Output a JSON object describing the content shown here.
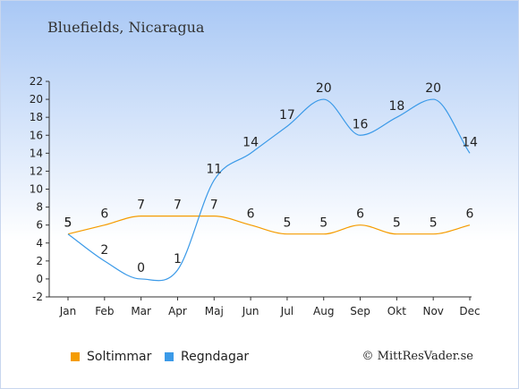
{
  "title": "Bluefields, Nicaragua",
  "credit": "© MittResVader.se",
  "chart_data": {
    "type": "line",
    "categories": [
      "Jan",
      "Feb",
      "Mar",
      "Apr",
      "Maj",
      "Jun",
      "Jul",
      "Aug",
      "Sep",
      "Okt",
      "Nov",
      "Dec"
    ],
    "ylim": [
      -2,
      22
    ],
    "yticks": [
      -2,
      0,
      2,
      4,
      6,
      8,
      10,
      12,
      14,
      16,
      18,
      20,
      22
    ],
    "grid": false,
    "legend_position": "bottom-left",
    "series": [
      {
        "name": "Soltimmar",
        "color": "#f59c00",
        "values": [
          5,
          6,
          7,
          7,
          7,
          6,
          5,
          5,
          6,
          5,
          5,
          6
        ]
      },
      {
        "name": "Regndagar",
        "color": "#3b9ae8",
        "values": [
          5,
          2,
          0,
          1,
          11,
          14,
          17,
          20,
          16,
          18,
          20,
          14
        ]
      }
    ]
  }
}
